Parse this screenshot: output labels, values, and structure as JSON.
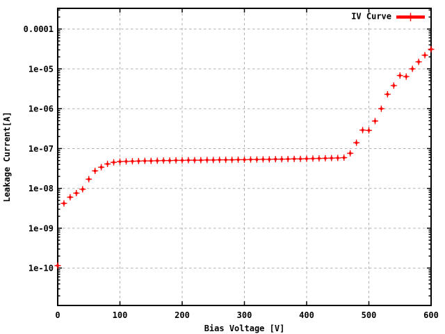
{
  "window": {
    "background": "#ffffff"
  },
  "chart_data": {
    "type": "scatter",
    "title": "",
    "xlabel": "Bias Voltage [V]",
    "ylabel": "Leakage Current[A]",
    "x_ticks": [
      0,
      100,
      200,
      300,
      400,
      500,
      600
    ],
    "x_tick_labels": [
      "0",
      "100",
      "200",
      "300",
      "400",
      "500",
      "600"
    ],
    "y_ticks": [
      0.0001,
      1e-05,
      1e-06,
      1e-07,
      1e-08,
      1e-09,
      1e-10
    ],
    "y_tick_labels": [
      "0.0001",
      "1e-05",
      "1e-06",
      "1e-07",
      "1e-08",
      "1e-09",
      "1e-10"
    ],
    "xlim": [
      0,
      600
    ],
    "ylim": [
      1.15e-11,
      0.00033
    ],
    "y_scale": "log",
    "grid": true,
    "colors": {
      "series": "#ff0000",
      "grid": "#b0b0b0",
      "axis": "#000000",
      "text": "#000000",
      "background": "#ffffff"
    },
    "legend": {
      "position": "top-right-inside",
      "entries": [
        {
          "label": "IV Curve",
          "color": "#ff0000",
          "marker": "plus",
          "style": "line-with-point"
        }
      ]
    },
    "series": [
      {
        "name": "IV Curve",
        "marker": "plus",
        "color": "#ff0000",
        "x": [
          0,
          10,
          20,
          30,
          40,
          50,
          60,
          70,
          80,
          90,
          100,
          110,
          120,
          130,
          140,
          150,
          160,
          170,
          180,
          190,
          200,
          210,
          220,
          230,
          240,
          250,
          260,
          270,
          280,
          290,
          300,
          310,
          320,
          330,
          340,
          350,
          360,
          370,
          380,
          390,
          400,
          410,
          420,
          430,
          440,
          450,
          460,
          470,
          480,
          490,
          500,
          510,
          520,
          530,
          540,
          550,
          560,
          570,
          580,
          590,
          600
        ],
        "y": [
          1.15e-10,
          4.2e-09,
          6e-09,
          7.6e-09,
          9.5e-09,
          1.7e-08,
          2.75e-08,
          3.4e-08,
          4.1e-08,
          4.5e-08,
          4.7e-08,
          4.75e-08,
          4.8e-08,
          4.85e-08,
          4.9e-08,
          4.9e-08,
          4.95e-08,
          5e-08,
          5e-08,
          5.05e-08,
          5.05e-08,
          5.1e-08,
          5.1e-08,
          5.1e-08,
          5.15e-08,
          5.15e-08,
          5.2e-08,
          5.2e-08,
          5.2e-08,
          5.25e-08,
          5.25e-08,
          5.3e-08,
          5.3e-08,
          5.35e-08,
          5.35e-08,
          5.4e-08,
          5.4e-08,
          5.45e-08,
          5.5e-08,
          5.5e-08,
          5.55e-08,
          5.6e-08,
          5.65e-08,
          5.7e-08,
          5.75e-08,
          5.8e-08,
          5.9e-08,
          7.6e-08,
          1.4e-07,
          2.9e-07,
          2.85e-07,
          4.9e-07,
          1e-06,
          2.3e-06,
          3.8e-06,
          6.8e-06,
          6.4e-06,
          1e-05,
          1.5e-05,
          2.2e-05,
          3.1e-05
        ]
      }
    ]
  }
}
